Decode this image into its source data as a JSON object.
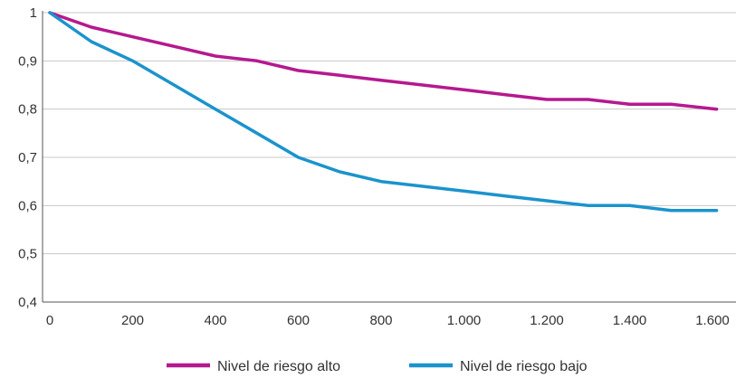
{
  "chart_data": {
    "type": "line",
    "title": "",
    "xlabel": "",
    "ylabel": "",
    "xlim": [
      0,
      1650
    ],
    "ylim": [
      0.4,
      1
    ],
    "grid": true,
    "legend_position": "bottom",
    "x_ticks": [
      {
        "value": 0,
        "label": "0"
      },
      {
        "value": 200,
        "label": "200"
      },
      {
        "value": 400,
        "label": "400"
      },
      {
        "value": 600,
        "label": "600"
      },
      {
        "value": 800,
        "label": "800"
      },
      {
        "value": 1000,
        "label": "1.000"
      },
      {
        "value": 1200,
        "label": "1.200"
      },
      {
        "value": 1400,
        "label": "1.400"
      },
      {
        "value": 1600,
        "label": "1.600"
      }
    ],
    "y_ticks": [
      {
        "value": 0.4,
        "label": "0,4"
      },
      {
        "value": 0.5,
        "label": "0,5"
      },
      {
        "value": 0.6,
        "label": "0,6"
      },
      {
        "value": 0.7,
        "label": "0,7"
      },
      {
        "value": 0.8,
        "label": "0,8"
      },
      {
        "value": 0.9,
        "label": "0,9"
      },
      {
        "value": 1,
        "label": "1"
      }
    ],
    "series": [
      {
        "name": "Nivel de riesgo alto",
        "color": "#b5198f",
        "points": [
          [
            0,
            1
          ],
          [
            100,
            0.97
          ],
          [
            200,
            0.95
          ],
          [
            300,
            0.93
          ],
          [
            400,
            0.91
          ],
          [
            500,
            0.9
          ],
          [
            600,
            0.88
          ],
          [
            700,
            0.87
          ],
          [
            800,
            0.86
          ],
          [
            900,
            0.85
          ],
          [
            1000,
            0.84
          ],
          [
            1100,
            0.83
          ],
          [
            1200,
            0.82
          ],
          [
            1300,
            0.82
          ],
          [
            1400,
            0.81
          ],
          [
            1500,
            0.81
          ],
          [
            1610,
            0.8
          ]
        ]
      },
      {
        "name": "Nivel de riesgo bajo",
        "color": "#1b93cc",
        "points": [
          [
            0,
            1
          ],
          [
            100,
            0.94
          ],
          [
            200,
            0.9
          ],
          [
            300,
            0.85
          ],
          [
            400,
            0.8
          ],
          [
            500,
            0.75
          ],
          [
            600,
            0.7
          ],
          [
            700,
            0.67
          ],
          [
            800,
            0.65
          ],
          [
            900,
            0.64
          ],
          [
            1000,
            0.63
          ],
          [
            1100,
            0.62
          ],
          [
            1200,
            0.61
          ],
          [
            1300,
            0.6
          ],
          [
            1400,
            0.6
          ],
          [
            1500,
            0.59
          ],
          [
            1610,
            0.59
          ]
        ]
      }
    ]
  }
}
